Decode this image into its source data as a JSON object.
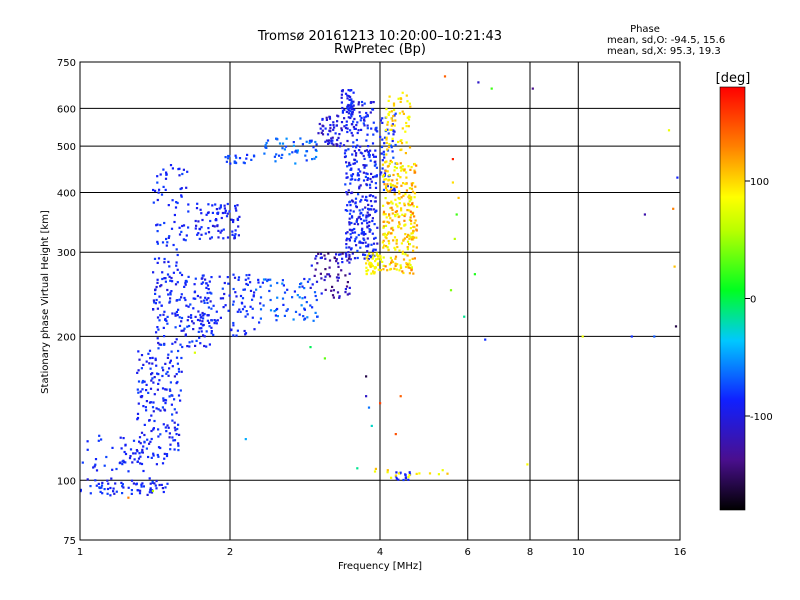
{
  "chart_data": {
    "type": "scatter",
    "title": "Tromsø 20161213 10:20:00–10:21:43",
    "subtitle": "RwPretec (Bp)",
    "xlabel": "Frequency [MHz]",
    "ylabel": "Stationary phase Virtual Height [km]",
    "xscale": "log",
    "yscale": "log",
    "xlim": [
      1,
      16
    ],
    "ylim": [
      75,
      750
    ],
    "x_ticks": [
      1,
      2,
      4,
      6,
      8,
      10,
      16
    ],
    "y_ticks": [
      75,
      100,
      200,
      300,
      400,
      500,
      600,
      750
    ],
    "grid": true,
    "phase_stats": {
      "heading": "Phase",
      "line_o": "mean, sd,O: -94.5, 15.6",
      "line_x": "mean, sd,X:  95.3, 19.3"
    },
    "colorbar": {
      "label": "[deg]",
      "range": [
        -180,
        180
      ],
      "ticks": [
        "100",
        "0",
        "-100"
      ],
      "tick_values": [
        100,
        0,
        -100
      ]
    },
    "series": [
      {
        "phase_mean": -94.5,
        "phase_sd": 15.6,
        "clusters": [
          {
            "x": [
              1.0,
              1.5
            ],
            "y": [
              93,
              101
            ],
            "n": 70,
            "phase": [
              -115,
              -85
            ]
          },
          {
            "x": [
              1.0,
              1.35
            ],
            "y": [
              104,
              125
            ],
            "n": 35,
            "phase": [
              -110,
              -85
            ]
          },
          {
            "x": [
              1.2,
              1.5
            ],
            "y": [
              108,
              115
            ],
            "n": 30,
            "phase": [
              -110,
              -90
            ]
          },
          {
            "x": [
              1.3,
              1.6
            ],
            "y": [
              115,
              190
            ],
            "n": 160,
            "phase": [
              -115,
              -85
            ]
          },
          {
            "x": [
              1.4,
              1.85
            ],
            "y": [
              190,
              270
            ],
            "n": 170,
            "phase": [
              -115,
              -85
            ]
          },
          {
            "x": [
              1.4,
              1.65
            ],
            "y": [
              270,
              460
            ],
            "n": 80,
            "phase": [
              -110,
              -85
            ]
          },
          {
            "x": [
              1.7,
              2.1
            ],
            "y": [
              320,
              380
            ],
            "n": 80,
            "phase": [
              -115,
              -90
            ]
          },
          {
            "x": [
              1.75,
              2.3
            ],
            "y": [
              200,
              270
            ],
            "n": 90,
            "phase": [
              -110,
              -85
            ]
          },
          {
            "x": [
              1.95,
              2.25
            ],
            "y": [
              460,
              480
            ],
            "n": 20,
            "phase": [
              -100,
              -80
            ]
          },
          {
            "x": [
              2.25,
              3.0
            ],
            "y": [
              215,
              265
            ],
            "n": 70,
            "phase": [
              -105,
              -60
            ]
          },
          {
            "x": [
              2.3,
              3.0
            ],
            "y": [
              460,
              520
            ],
            "n": 50,
            "phase": [
              -95,
              -55
            ]
          },
          {
            "x": [
              2.9,
              3.5
            ],
            "y": [
              240,
              300
            ],
            "n": 70,
            "phase": [
              -150,
              -100
            ]
          },
          {
            "x": [
              3.0,
              3.45
            ],
            "y": [
              500,
              580
            ],
            "n": 60,
            "phase": [
              -130,
              -95
            ]
          },
          {
            "x": [
              3.35,
              3.55
            ],
            "y": [
              580,
              660
            ],
            "n": 40,
            "phase": [
              -115,
              -90
            ]
          },
          {
            "x": [
              3.4,
              3.95
            ],
            "y": [
              290,
              620
            ],
            "n": 330,
            "phase": [
              -120,
              -85
            ]
          },
          {
            "x": [
              4.0,
              4.3
            ],
            "y": [
              400,
              600
            ],
            "n": 50,
            "phase": [
              -110,
              -80
            ]
          },
          {
            "x": [
              4.3,
              4.6
            ],
            "y": [
              100,
              104
            ],
            "n": 14,
            "phase": [
              -110,
              -90
            ]
          }
        ]
      },
      {
        "phase_mean": 95.3,
        "phase_sd": 19.3,
        "clusters": [
          {
            "x": [
              3.75,
              4.05
            ],
            "y": [
              270,
              300
            ],
            "n": 45,
            "phase": [
              90,
              115
            ]
          },
          {
            "x": [
              4.05,
              4.7
            ],
            "y": [
              270,
              470
            ],
            "n": 260,
            "phase": [
              80,
              140
            ]
          },
          {
            "x": [
              4.1,
              4.6
            ],
            "y": [
              480,
              650
            ],
            "n": 60,
            "phase": [
              90,
              125
            ]
          },
          {
            "x": [
              4.6,
              4.75
            ],
            "y": [
              300,
              460
            ],
            "n": 25,
            "phase": [
              100,
              150
            ]
          },
          {
            "x": [
              3.8,
              5.5
            ],
            "y": [
              101,
              106
            ],
            "n": 14,
            "phase": [
              90,
              120
            ]
          }
        ]
      },
      {
        "points": [
          [
            1.55,
            165,
            -120
          ],
          [
            1.7,
            185,
            80
          ],
          [
            2.15,
            122,
            -50
          ],
          [
            2.9,
            190,
            -10
          ],
          [
            3.1,
            180,
            30
          ],
          [
            3.75,
            150,
            -120
          ],
          [
            3.8,
            142,
            -70
          ],
          [
            3.85,
            130,
            -30
          ],
          [
            3.75,
            165,
            -160
          ],
          [
            4.0,
            145,
            160
          ],
          [
            4.4,
            150,
            150
          ],
          [
            4.3,
            125,
            155
          ],
          [
            5.4,
            700,
            150
          ],
          [
            5.55,
            250,
            40
          ],
          [
            5.6,
            420,
            110
          ],
          [
            5.65,
            320,
            60
          ],
          [
            5.7,
            360,
            20
          ],
          [
            5.75,
            390,
            120
          ],
          [
            5.6,
            470,
            170
          ],
          [
            5.9,
            220,
            -20
          ],
          [
            6.2,
            270,
            10
          ],
          [
            6.5,
            197,
            -95
          ],
          [
            6.7,
            660,
            20
          ],
          [
            6.3,
            680,
            -120
          ],
          [
            7.9,
            108,
            100
          ],
          [
            8.1,
            660,
            -140
          ],
          [
            10.2,
            200,
            90
          ],
          [
            12.8,
            200,
            -95
          ],
          [
            13.6,
            360,
            -130
          ],
          [
            14.2,
            200,
            -80
          ],
          [
            15.5,
            370,
            140
          ],
          [
            15.6,
            280,
            120
          ],
          [
            15.2,
            540,
            90
          ],
          [
            15.8,
            430,
            -100
          ],
          [
            15.7,
            210,
            -160
          ],
          [
            1.25,
            92,
            140
          ],
          [
            1.4,
            95,
            60
          ],
          [
            3.6,
            106,
            -20
          ],
          [
            5.25,
            103,
            90
          ]
        ]
      }
    ]
  }
}
